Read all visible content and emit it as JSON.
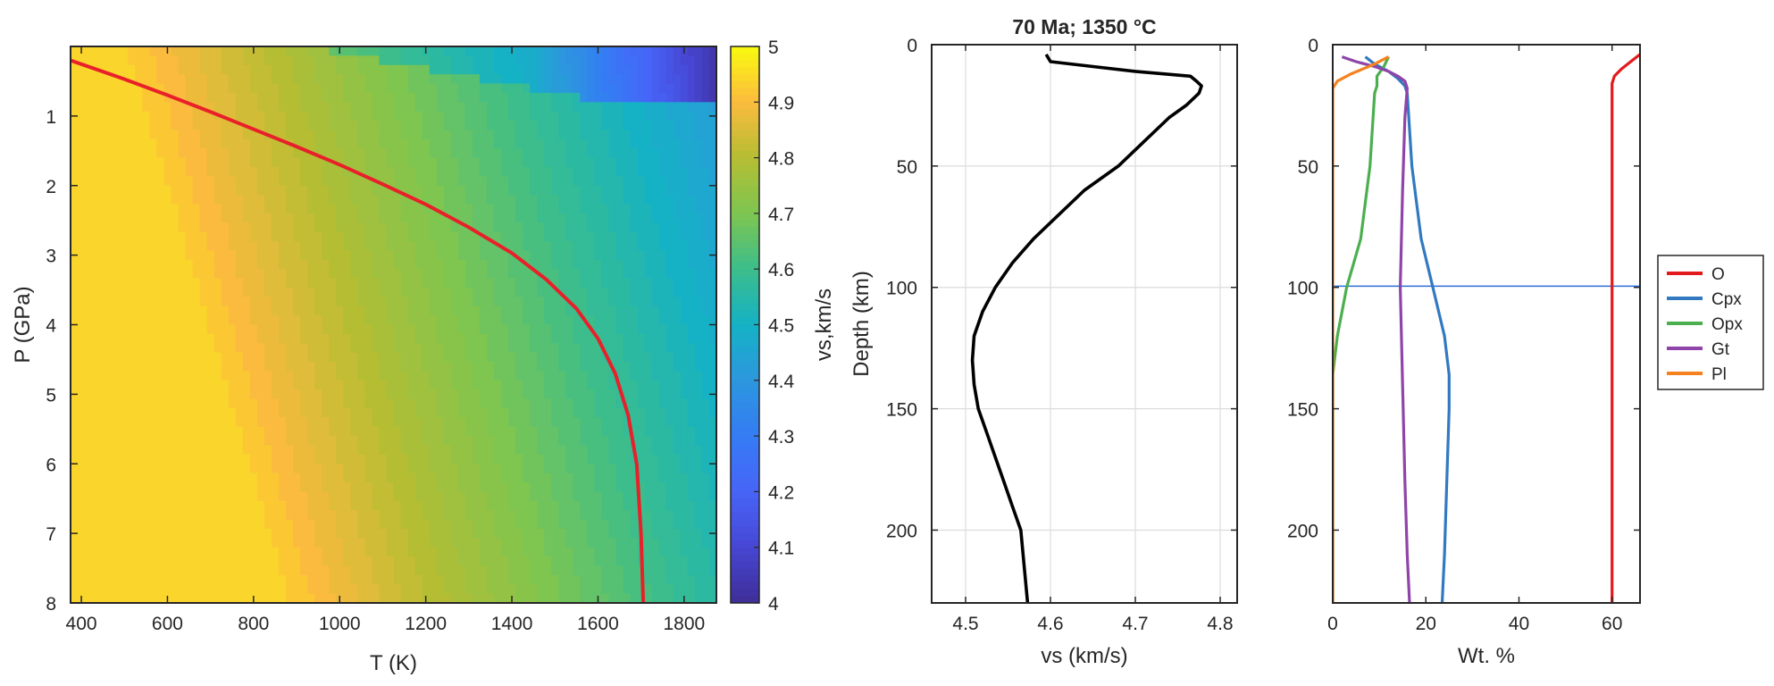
{
  "chart_data": [
    {
      "type": "heatmap",
      "xlabel": "T (K)",
      "ylabel": "P (GPa)",
      "xlim": [
        375,
        1875
      ],
      "ylim": [
        0,
        8
      ],
      "y_reversed": true,
      "xticks": [
        400,
        600,
        800,
        1000,
        1200,
        1400,
        1600,
        1800
      ],
      "yticks": [
        1,
        2,
        3,
        4,
        5,
        6,
        7,
        8
      ],
      "colorbar": {
        "label": "vs,km/s",
        "range": [
          4,
          5
        ],
        "ticks": [
          "5",
          "4.9",
          "4.8",
          "4.7",
          "4.6",
          "4.5",
          "4.4",
          "4.3",
          "4.2",
          "4.1",
          "4"
        ],
        "colors": [
          "#f9fb0e",
          "#fbbb3e",
          "#b5bd33",
          "#7ec650",
          "#3cbd8b",
          "#15b2c5",
          "#2c97de",
          "#357bf4",
          "#4765f8",
          "#4747d4",
          "#3e2d96"
        ]
      },
      "geotherm": {
        "color": "#e8202a",
        "T": [
          375,
          500,
          600,
          700,
          800,
          900,
          1000,
          1100,
          1200,
          1300,
          1400,
          1480,
          1550,
          1600,
          1640,
          1670,
          1690,
          1700,
          1705
        ],
        "P": [
          0.2,
          0.47,
          0.7,
          0.94,
          1.19,
          1.44,
          1.7,
          1.98,
          2.27,
          2.6,
          2.97,
          3.35,
          3.77,
          4.2,
          4.7,
          5.3,
          6.0,
          7.0,
          8.0
        ]
      },
      "melt_region": {
        "T_start": 920,
        "P_base": 0.75
      }
    },
    {
      "type": "line",
      "title": "70 Ma; 1350 °C",
      "xlabel": "vs (km/s)",
      "ylabel": "Depth (km)",
      "xlim": [
        4.46,
        4.82
      ],
      "ylim": [
        0,
        230
      ],
      "y_reversed": true,
      "grid": true,
      "xticks": [
        4.5,
        4.6,
        4.7,
        4.8
      ],
      "yticks": [
        0,
        50,
        100,
        150,
        200
      ],
      "series": [
        {
          "color": "#000000",
          "x": [
            4.595,
            4.6,
            4.65,
            4.7,
            4.765,
            4.772,
            4.778,
            4.775,
            4.76,
            4.74,
            4.71,
            4.68,
            4.64,
            4.61,
            4.58,
            4.555,
            4.535,
            4.52,
            4.51,
            4.508,
            4.51,
            4.515,
            4.525,
            4.535,
            4.545,
            4.555,
            4.565,
            4.573
          ],
          "y": [
            4,
            7,
            9,
            11,
            13,
            15,
            17,
            20,
            25,
            30,
            40,
            50,
            60,
            70,
            80,
            90,
            100,
            110,
            120,
            130,
            140,
            150,
            160,
            170,
            180,
            190,
            200,
            230
          ]
        }
      ]
    },
    {
      "type": "line",
      "xlabel": "Wt. %",
      "xlim": [
        0,
        66
      ],
      "ylim": [
        0,
        230
      ],
      "y_reversed": true,
      "xticks": [
        0,
        20,
        40,
        60
      ],
      "yticks": [
        0,
        50,
        100,
        150,
        200
      ],
      "legend_position": "right",
      "hline": {
        "y": 99.5,
        "color": "#2c6fd6"
      },
      "series": [
        {
          "name": "O",
          "color": "#e31a1c",
          "x": [
            66,
            64,
            62,
            60.5,
            60,
            60,
            60,
            60,
            60,
            60,
            60,
            60
          ],
          "y": [
            4,
            7,
            10,
            13,
            16,
            20,
            50,
            100,
            140,
            180,
            210,
            230
          ]
        },
        {
          "name": "Cpx",
          "color": "#3179c0",
          "x": [
            7,
            9,
            12,
            14,
            15.5,
            16,
            17,
            19,
            21.5,
            24,
            25,
            25,
            24.5,
            24,
            23.5
          ],
          "y": [
            5,
            8,
            11,
            14,
            17,
            20,
            50,
            80,
            100,
            120,
            136,
            150,
            180,
            210,
            230
          ]
        },
        {
          "name": "Opx",
          "color": "#4caf4f",
          "x": [
            12,
            11,
            9.5,
            9.5,
            9,
            8,
            6,
            3,
            1,
            0,
            0,
            0
          ],
          "y": [
            5,
            9,
            13,
            17,
            20,
            50,
            80,
            100,
            120,
            136,
            180,
            230
          ]
        },
        {
          "name": "Gt",
          "color": "#8e44a8",
          "x": [
            2,
            5,
            9,
            12,
            14,
            15.5,
            16,
            15.5,
            15,
            14.5,
            15,
            15.5,
            16,
            16.5
          ],
          "y": [
            5,
            7,
            9,
            11,
            13,
            15,
            18,
            30,
            60,
            100,
            140,
            180,
            210,
            230
          ]
        },
        {
          "name": "Pl",
          "color": "#f5821f",
          "x": [
            12,
            9,
            4,
            1,
            0,
            0,
            0,
            0
          ],
          "y": [
            5,
            8,
            12,
            15,
            18,
            50,
            150,
            230
          ]
        }
      ]
    }
  ]
}
